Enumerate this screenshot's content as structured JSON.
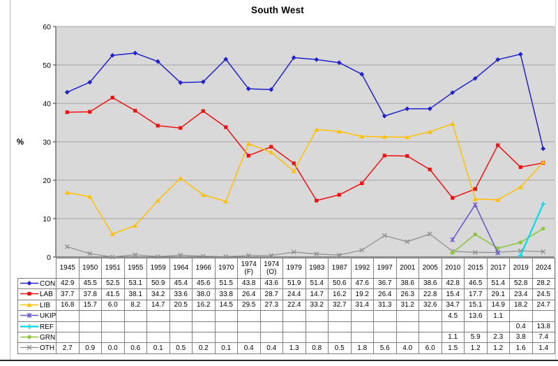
{
  "chart_data": {
    "type": "line",
    "title": "South West",
    "ylabel": "%",
    "ylim": [
      0,
      60
    ],
    "yticks": [
      0,
      10,
      20,
      30,
      40,
      50,
      60
    ],
    "grid": "horizontal",
    "plot_bg": "#d9d9d9",
    "grid_color": "#a3a3a3",
    "axis_color": "#555555",
    "legend_position": "table-rows-left",
    "categories": [
      "1945",
      "1950",
      "1951",
      "1955",
      "1959",
      "1964",
      "1966",
      "1970",
      "1974 (F)",
      "1974 (O)",
      "1979",
      "1983",
      "1987",
      "1992",
      "1997",
      "2001",
      "2005",
      "2010",
      "2015",
      "2017",
      "2019",
      "2024"
    ],
    "series": [
      {
        "name": "CON",
        "color": "#2222cc",
        "marker": "diamond",
        "line_width": 1.5,
        "values": [
          42.9,
          45.5,
          52.5,
          53.1,
          50.9,
          45.4,
          45.6,
          51.5,
          43.8,
          43.6,
          51.9,
          51.4,
          50.6,
          47.6,
          36.7,
          38.6,
          38.6,
          42.8,
          46.5,
          51.4,
          52.8,
          28.2
        ]
      },
      {
        "name": "LAB",
        "color": "#ee1111",
        "marker": "square",
        "line_width": 1.5,
        "values": [
          37.7,
          37.8,
          41.5,
          38.1,
          34.2,
          33.6,
          38.0,
          33.8,
          26.4,
          28.7,
          24.4,
          14.7,
          16.2,
          19.2,
          26.4,
          26.3,
          22.8,
          15.4,
          17.7,
          29.1,
          23.4,
          24.5
        ]
      },
      {
        "name": "LIB",
        "color": "#ffc000",
        "marker": "triangle",
        "line_width": 1.5,
        "values": [
          16.8,
          15.7,
          6.0,
          8.2,
          14.7,
          20.5,
          16.2,
          14.5,
          29.5,
          27.3,
          22.4,
          33.2,
          32.7,
          31.4,
          31.3,
          31.2,
          32.6,
          34.7,
          15.1,
          14.9,
          18.2,
          24.7
        ]
      },
      {
        "name": "UKIP",
        "color": "#6a5acd",
        "marker": "xstar",
        "line_width": 1.6,
        "values": [
          null,
          null,
          null,
          null,
          null,
          null,
          null,
          null,
          null,
          null,
          null,
          null,
          null,
          null,
          null,
          null,
          null,
          4.5,
          13.6,
          1.1,
          null,
          null
        ]
      },
      {
        "name": "REF",
        "color": "#00dcec",
        "marker": "plus",
        "line_width": 2.2,
        "values": [
          null,
          null,
          null,
          null,
          null,
          null,
          null,
          null,
          null,
          null,
          null,
          null,
          null,
          null,
          null,
          null,
          null,
          null,
          null,
          null,
          0.4,
          13.8
        ]
      },
      {
        "name": "GRN",
        "color": "#8cc63e",
        "marker": "circle",
        "line_width": 1.6,
        "values": [
          null,
          null,
          null,
          null,
          null,
          null,
          null,
          null,
          null,
          null,
          null,
          null,
          null,
          null,
          null,
          null,
          null,
          1.1,
          5.9,
          2.3,
          3.8,
          7.4
        ]
      },
      {
        "name": "OTH",
        "color": "#8e8e8e",
        "marker": "x",
        "line_width": 1.2,
        "values": [
          2.7,
          0.9,
          0.0,
          0.6,
          0.1,
          0.5,
          0.2,
          0.1,
          0.4,
          0.4,
          1.3,
          0.8,
          0.5,
          1.8,
          5.6,
          4.0,
          6.0,
          1.5,
          1.2,
          1.2,
          1.6,
          1.4
        ]
      }
    ]
  },
  "frame": {
    "bottom_color": "#2a2a2a",
    "side_color": "#bcbcbc"
  }
}
